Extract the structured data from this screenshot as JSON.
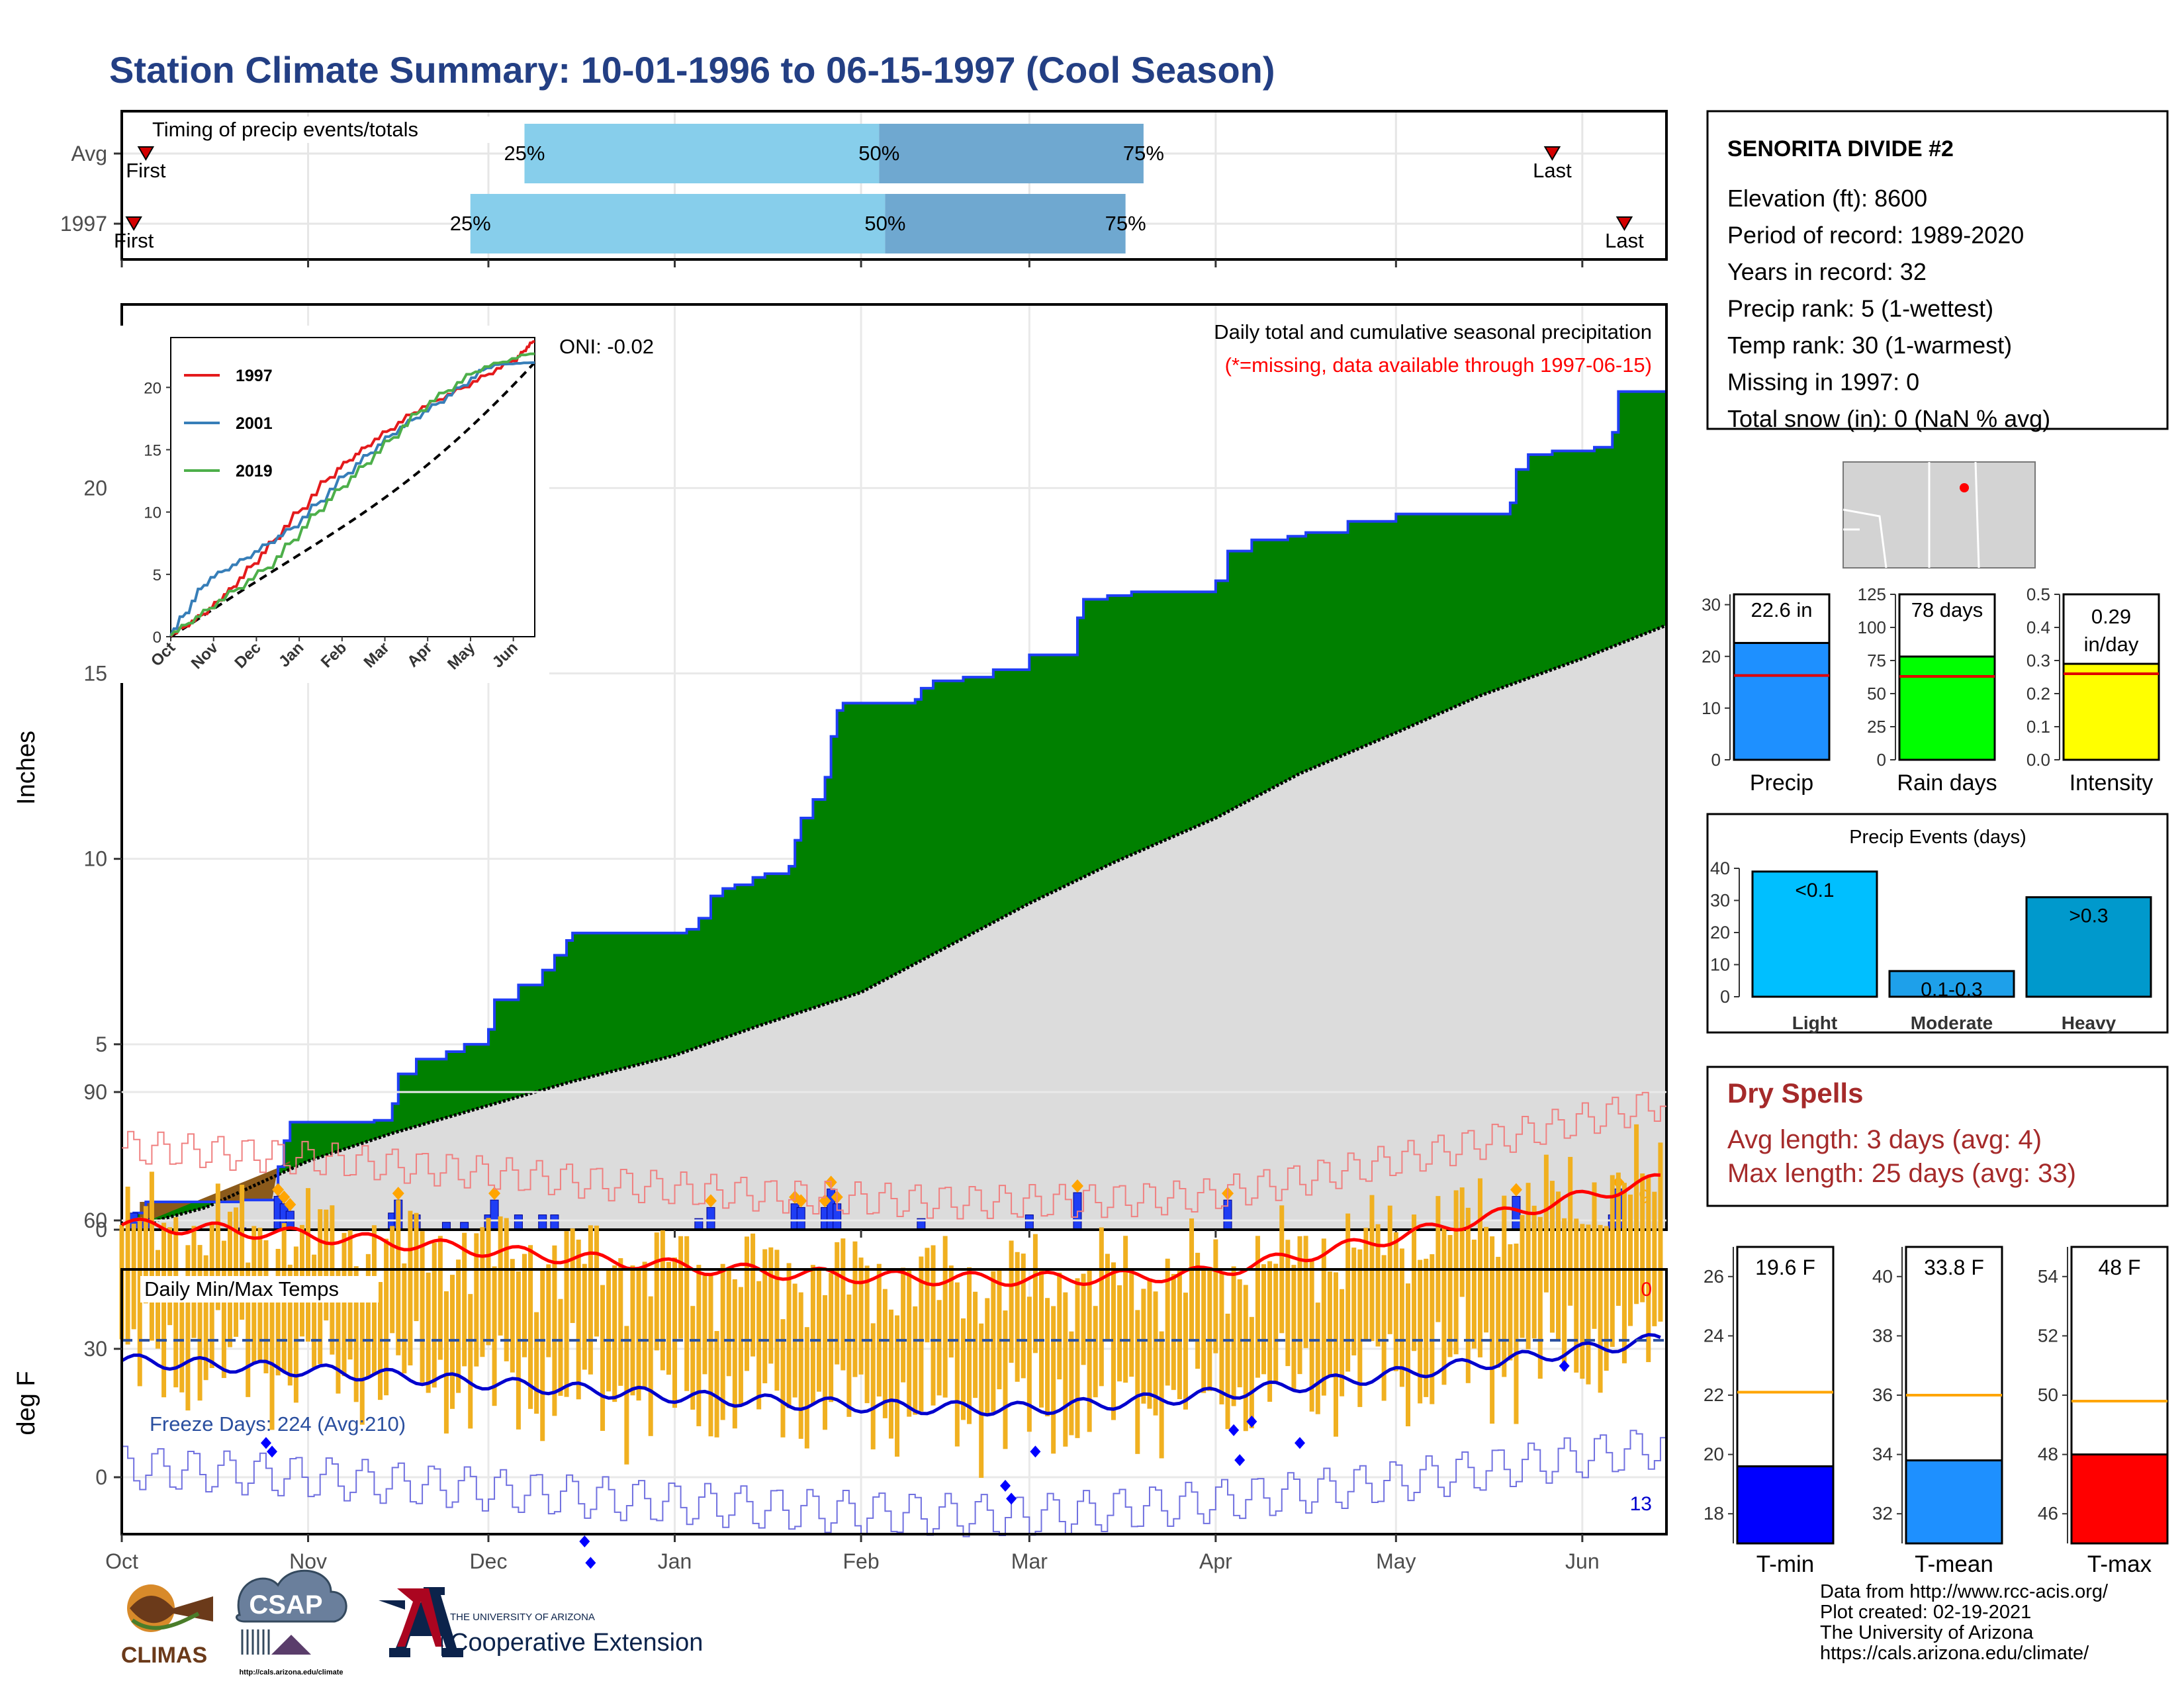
{
  "title": "Station Climate Summary: 10-01-1996 to 06-15-1997 (Cool Season)",
  "colors": {
    "title": "#233f84",
    "cumulative_obs": "#008000",
    "cumulative_avg": "#dcdcdc",
    "daily_bar": "#1f3ef5",
    "marker": "#ffa500",
    "tmax_line": "#ff0000",
    "tmin_line": "#0000cd",
    "temp_bar": "#f0b020",
    "dry_spells": "#a52a2a"
  },
  "timing": {
    "label": "Timing of precip events/totals",
    "rows": [
      {
        "name": "Avg",
        "first_label": "First",
        "last_label": "Last",
        "first": "1996-10-05",
        "p25": "1996-12-07",
        "p50": "1997-02-04",
        "p75": "1997-03-20",
        "last": "1997-05-27"
      },
      {
        "name": "1997",
        "first_label": "First",
        "last_label": "Last",
        "first": "1996-10-03",
        "p25": "1996-11-28",
        "p50": "1997-02-05",
        "p75": "1997-03-17",
        "last": "1997-06-08"
      }
    ],
    "pct_labels": [
      "25%",
      "50%",
      "75%"
    ]
  },
  "precip_panel": {
    "ylabel": "Inches",
    "caption": "Daily total and cumulative seasonal precipitation",
    "missing_note": "(*=missing, data available through 1997-06-15)",
    "oni": "ONI: -0.02",
    "right_marker_count": "9",
    "yticks": [
      "0",
      "5",
      "10",
      "15",
      "20"
    ]
  },
  "inset": {
    "legend": [
      "1997",
      "2001",
      "2019"
    ],
    "legend_colors": [
      "#e41a1c",
      "#377eb8",
      "#4daf4a"
    ],
    "yticks": [
      "0",
      "5",
      "10",
      "15",
      "20"
    ],
    "xticks": [
      "Oct",
      "Nov",
      "Dec",
      "Jan",
      "Feb",
      "Mar",
      "Apr",
      "May",
      "Jun"
    ]
  },
  "temp_panel": {
    "ylabel": "deg F",
    "label": "Daily Min/Max Temps",
    "freeze_label": "Freeze Days: 224 (Avg:210)",
    "top_count": "0",
    "bottom_count": "13",
    "yticks": [
      "0",
      "30",
      "60",
      "90"
    ]
  },
  "x_axis": [
    "Oct",
    "Nov",
    "Dec",
    "Jan",
    "Feb",
    "Mar",
    "Apr",
    "May",
    "Jun"
  ],
  "station": {
    "name": "SENORITA DIVIDE #2",
    "lines": [
      "Elevation (ft): 8600",
      "Period of record: 1989-2020",
      "Years in record: 32",
      "Precip rank: 5 (1-wettest)",
      "Temp rank: 30 (1-warmest)",
      "Missing in 1997: 0",
      "Total snow (in): 0 (NaN % avg)"
    ]
  },
  "mini_bars": [
    {
      "label": "Precip",
      "value_label": "22.6 in",
      "value": 22.6,
      "avg": 16.3,
      "max": 32,
      "yticks": [
        "0",
        "10",
        "20",
        "30"
      ],
      "color": "#1e90ff"
    },
    {
      "label": "Rain days",
      "value_label": "78 days",
      "value": 78,
      "avg": 63,
      "max": 125,
      "yticks": [
        "0",
        "25",
        "50",
        "75",
        "100",
        "125"
      ],
      "color": "#00ff00"
    },
    {
      "label": "Intensity",
      "value_label": "0.29 in/day",
      "value": 0.29,
      "avg": 0.26,
      "max": 0.5,
      "yticks": [
        "0.0",
        "0.1",
        "0.2",
        "0.3",
        "0.4",
        "0.5"
      ],
      "color": "#ffff00"
    }
  ],
  "precip_events": {
    "title": "Precip Events (days)",
    "categories": [
      "Light",
      "Moderate",
      "Heavy"
    ],
    "bar_labels": [
      "<0.1",
      "0.1-0.3",
      ">0.3"
    ],
    "values": [
      39,
      8,
      31
    ],
    "yticks": [
      "0",
      "10",
      "20",
      "30",
      "40"
    ],
    "colors": [
      "#00bfff",
      "#1ea0ea",
      "#0099cc"
    ]
  },
  "dry_spells": {
    "title": "Dry Spells",
    "avg_line": "Avg length: 3 days (avg: 4)",
    "max_line": "Max length: 25 days (avg: 33)"
  },
  "temp_bars": [
    {
      "label": "T-min",
      "value_label": "19.6 F",
      "value": 19.6,
      "avg": 22.1,
      "min": 17,
      "max": 27,
      "ticks": [
        18,
        20,
        22,
        24,
        26
      ],
      "color": "#0000ff"
    },
    {
      "label": "T-mean",
      "value_label": "33.8 F",
      "value": 33.8,
      "avg": 36,
      "min": 31,
      "max": 41,
      "ticks": [
        32,
        34,
        36,
        38,
        40
      ],
      "color": "#1e90ff"
    },
    {
      "label": "T-max",
      "value_label": "48 F",
      "value": 48,
      "avg": 49.8,
      "min": 45,
      "max": 55,
      "ticks": [
        46,
        48,
        50,
        52,
        54
      ],
      "color": "#ff0000"
    }
  ],
  "logos": {
    "climas": "CLIMAS",
    "csap": "CSAP",
    "csap_url": "http://cals.arizona.edu/climate",
    "ua_small": "THE UNIVERSITY OF ARIZONA",
    "ua_big": "Cooperative Extension"
  },
  "footer": [
    "Data from http://www.rcc-acis.org/",
    "Plot created: 02-19-2021",
    "The University of Arizona",
    "https://cals.arizona.edu/climate/"
  ],
  "chart_data": {
    "type": "area",
    "title": "Daily total and cumulative seasonal precipitation",
    "xlabel": "",
    "ylabel": "Inches",
    "x_range": [
      "1996-10-01",
      "1997-06-15"
    ],
    "ylim": [
      0,
      25
    ],
    "series": [
      {
        "name": "cumulative observed",
        "points": [
          [
            "1996-10-01",
            0
          ],
          [
            "1996-10-03",
            0.45
          ],
          [
            "1996-10-05",
            0.75
          ],
          [
            "1996-10-21",
            0.8
          ],
          [
            "1996-10-27",
            1.7
          ],
          [
            "1996-10-28",
            2.4
          ],
          [
            "1996-10-29",
            2.9
          ],
          [
            "1996-11-12",
            2.95
          ],
          [
            "1996-11-15",
            3.4
          ],
          [
            "1996-11-16",
            4.2
          ],
          [
            "1996-11-19",
            4.6
          ],
          [
            "1996-11-24",
            4.8
          ],
          [
            "1996-11-27",
            5.0
          ],
          [
            "1996-12-01",
            5.4
          ],
          [
            "1996-12-02",
            6.2
          ],
          [
            "1996-12-06",
            6.6
          ],
          [
            "1996-12-10",
            7.0
          ],
          [
            "1996-12-12",
            7.4
          ],
          [
            "1996-12-14",
            7.8
          ],
          [
            "1996-12-15",
            8.0
          ],
          [
            "1997-01-03",
            8.1
          ],
          [
            "1997-01-05",
            8.4
          ],
          [
            "1997-01-07",
            9.0
          ],
          [
            "1997-01-09",
            9.2
          ],
          [
            "1997-01-11",
            9.3
          ],
          [
            "1997-01-14",
            9.5
          ],
          [
            "1997-01-16",
            9.6
          ],
          [
            "1997-01-20",
            9.8
          ],
          [
            "1997-01-21",
            10.5
          ],
          [
            "1997-01-22",
            11.1
          ],
          [
            "1997-01-24",
            11.6
          ],
          [
            "1997-01-26",
            12.2
          ],
          [
            "1997-01-27",
            13.3
          ],
          [
            "1997-01-28",
            14.0
          ],
          [
            "1997-01-29",
            14.2
          ],
          [
            "1997-02-10",
            14.3
          ],
          [
            "1997-02-11",
            14.6
          ],
          [
            "1997-02-13",
            14.8
          ],
          [
            "1997-02-18",
            14.9
          ],
          [
            "1997-02-23",
            15.1
          ],
          [
            "1997-03-01",
            15.5
          ],
          [
            "1997-03-09",
            16.5
          ],
          [
            "1997-03-10",
            17.0
          ],
          [
            "1997-03-14",
            17.1
          ],
          [
            "1997-03-18",
            17.2
          ],
          [
            "1997-04-01",
            17.5
          ],
          [
            "1997-04-03",
            18.3
          ],
          [
            "1997-04-07",
            18.6
          ],
          [
            "1997-04-13",
            18.7
          ],
          [
            "1997-04-16",
            18.8
          ],
          [
            "1997-04-23",
            19.1
          ],
          [
            "1997-05-01",
            19.3
          ],
          [
            "1997-05-13",
            19.3
          ],
          [
            "1997-05-20",
            19.6
          ],
          [
            "1997-05-21",
            20.5
          ],
          [
            "1997-05-23",
            20.9
          ],
          [
            "1997-05-27",
            21.0
          ],
          [
            "1997-06-03",
            21.1
          ],
          [
            "1997-06-06",
            21.5
          ],
          [
            "1997-06-07",
            22.6
          ],
          [
            "1997-06-15",
            22.6
          ]
        ]
      },
      {
        "name": "cumulative average",
        "points": [
          [
            "1996-10-01",
            0
          ],
          [
            "1996-10-15",
            0.6
          ],
          [
            "1996-11-01",
            1.85
          ],
          [
            "1996-11-15",
            2.6
          ],
          [
            "1996-12-01",
            3.35
          ],
          [
            "1996-12-15",
            4.0
          ],
          [
            "1997-01-01",
            4.7
          ],
          [
            "1997-01-15",
            5.5
          ],
          [
            "1997-02-01",
            6.4
          ],
          [
            "1997-02-15",
            7.6
          ],
          [
            "1997-03-01",
            8.8
          ],
          [
            "1997-03-15",
            9.9
          ],
          [
            "1997-04-01",
            11.1
          ],
          [
            "1997-04-15",
            12.3
          ],
          [
            "1997-05-01",
            13.4
          ],
          [
            "1997-05-15",
            14.4
          ],
          [
            "1997-06-01",
            15.4
          ],
          [
            "1997-06-15",
            16.3
          ]
        ]
      },
      {
        "name": "daily precipitation",
        "points": [
          [
            "1996-10-03",
            0.45
          ],
          [
            "1996-10-05",
            0.3
          ],
          [
            "1996-10-21",
            0.05
          ],
          [
            "1996-10-27",
            0.9
          ],
          [
            "1996-10-28",
            0.7
          ],
          [
            "1996-10-29",
            0.5
          ],
          [
            "1996-11-15",
            0.45
          ],
          [
            "1996-11-16",
            0.8
          ],
          [
            "1996-11-19",
            0.4
          ],
          [
            "1996-11-24",
            0.2
          ],
          [
            "1996-11-27",
            0.2
          ],
          [
            "1996-12-01",
            0.4
          ],
          [
            "1996-12-02",
            0.8
          ],
          [
            "1996-12-06",
            0.4
          ],
          [
            "1996-12-10",
            0.4
          ],
          [
            "1996-12-12",
            0.4
          ],
          [
            "1997-01-05",
            0.3
          ],
          [
            "1997-01-07",
            0.6
          ],
          [
            "1997-01-21",
            0.7
          ],
          [
            "1997-01-22",
            0.6
          ],
          [
            "1997-01-26",
            0.6
          ],
          [
            "1997-01-27",
            1.1
          ],
          [
            "1997-01-28",
            0.7
          ],
          [
            "1997-02-11",
            0.3
          ],
          [
            "1997-03-01",
            0.4
          ],
          [
            "1997-03-09",
            1.0
          ],
          [
            "1997-04-03",
            0.8
          ],
          [
            "1997-05-21",
            0.9
          ],
          [
            "1997-06-06",
            0.4
          ],
          [
            "1997-06-07",
            1.1
          ]
        ]
      }
    ]
  }
}
